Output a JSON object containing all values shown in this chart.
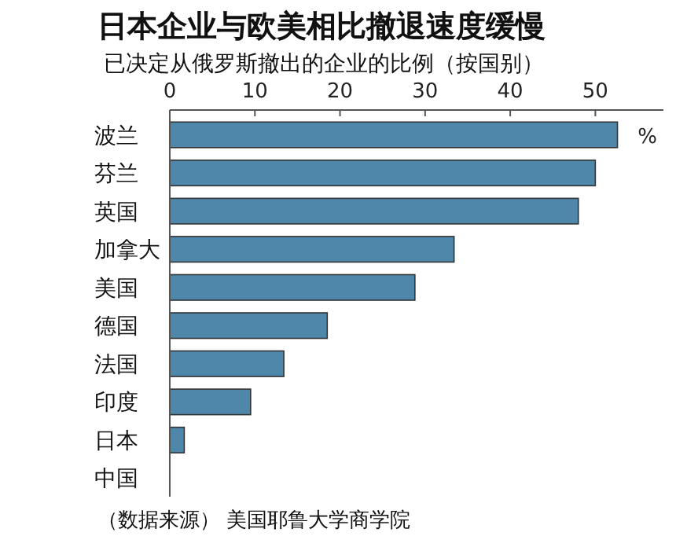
{
  "chart_data": {
    "type": "bar",
    "orientation": "horizontal",
    "title": "日本企业与欧美相比撤退速度缓慢",
    "subtitle": "已决定从俄罗斯撤出的企业的比例（按国别）",
    "xlabel": "%",
    "categories": [
      "波兰",
      "芬兰",
      "英国",
      "加拿大",
      "美国",
      "德国",
      "法国",
      "印度",
      "日本",
      "中国"
    ],
    "values": [
      52.6,
      50.0,
      48.0,
      33.4,
      28.8,
      18.5,
      13.4,
      9.5,
      1.7,
      0
    ],
    "color": "#4f87ab",
    "xlim": [
      0,
      58
    ],
    "xticks": [
      0,
      10,
      20,
      30,
      40,
      50
    ],
    "grid": false,
    "annotations": [
      "（数据来源） 美国耶鲁大学商学院"
    ]
  }
}
